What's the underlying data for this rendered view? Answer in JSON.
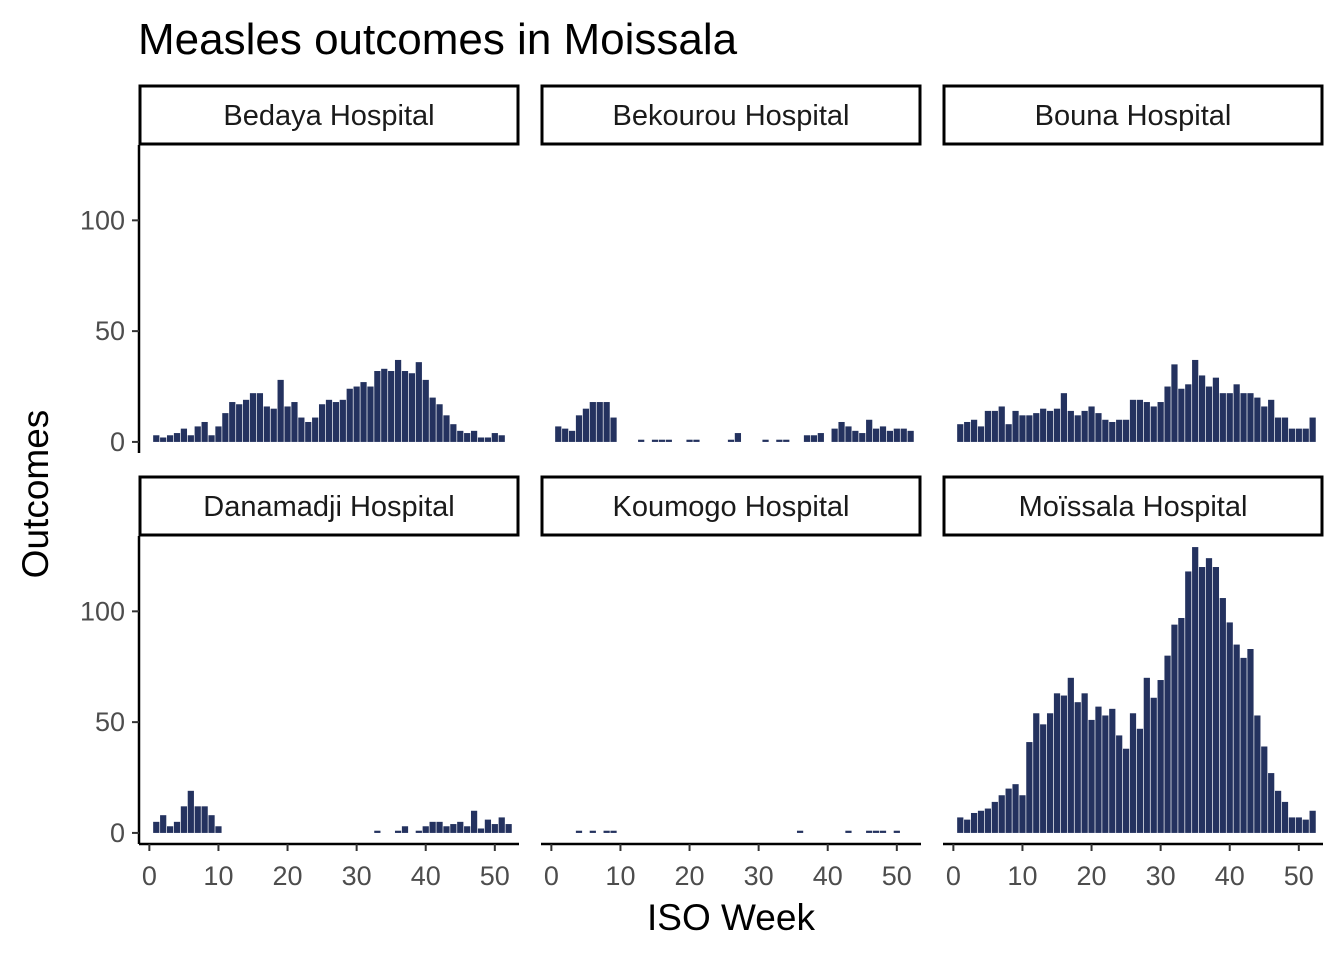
{
  "chart_data": {
    "type": "bar",
    "title": "Measles outcomes in Moissala",
    "xlabel": "ISO Week",
    "ylabel": "Outcomes",
    "xlim": [
      -1.5,
      53.5
    ],
    "ylim": [
      -5,
      134
    ],
    "x_ticks": [
      0,
      10,
      20,
      30,
      40,
      50
    ],
    "y_ticks": [
      0,
      50,
      100
    ],
    "bar_color": "#24325f",
    "grid": false,
    "weeks": [
      1,
      2,
      3,
      4,
      5,
      6,
      7,
      8,
      9,
      10,
      11,
      12,
      13,
      14,
      15,
      16,
      17,
      18,
      19,
      20,
      21,
      22,
      23,
      24,
      25,
      26,
      27,
      28,
      29,
      30,
      31,
      32,
      33,
      34,
      35,
      36,
      37,
      38,
      39,
      40,
      41,
      42,
      43,
      44,
      45,
      46,
      47,
      48,
      49,
      50,
      51,
      52
    ],
    "panels": [
      {
        "name": "Bedaya Hospital",
        "values": [
          3,
          2,
          3,
          4,
          6,
          3,
          7,
          9,
          3,
          7,
          13,
          18,
          17,
          19,
          22,
          22,
          16,
          15,
          28,
          16,
          18,
          11,
          9,
          11,
          17,
          19,
          18,
          19,
          24,
          25,
          27,
          25,
          32,
          33,
          32,
          37,
          32,
          31,
          36,
          28,
          20,
          17,
          12,
          8,
          5,
          4,
          5,
          2,
          2,
          4,
          3,
          0
        ]
      },
      {
        "name": "Bekourou Hospital",
        "values": [
          7,
          6,
          5,
          12,
          15,
          18,
          18,
          18,
          11,
          0,
          0,
          0,
          1,
          0,
          1,
          1,
          1,
          0,
          0,
          1,
          1,
          0,
          0,
          0,
          0,
          1,
          4,
          0,
          0,
          0,
          1,
          0,
          1,
          1,
          0,
          0,
          3,
          3,
          4,
          0,
          6,
          9,
          7,
          5,
          4,
          10,
          6,
          7,
          5,
          6,
          6,
          5
        ]
      },
      {
        "name": "Bouna Hospital",
        "values": [
          8,
          9,
          10,
          7,
          14,
          14,
          16,
          8,
          14,
          12,
          12,
          13,
          15,
          14,
          15,
          22,
          14,
          12,
          14,
          16,
          13,
          10,
          9,
          10,
          10,
          19,
          19,
          18,
          16,
          18,
          25,
          35,
          24,
          26,
          37,
          30,
          25,
          29,
          22,
          22,
          26,
          22,
          22,
          20,
          16,
          19,
          11,
          11,
          6,
          6,
          6,
          11
        ]
      },
      {
        "name": "Danamadji Hospital",
        "values": [
          5,
          8,
          3,
          5,
          12,
          19,
          12,
          12,
          8,
          3,
          0,
          0,
          0,
          0,
          0,
          0,
          0,
          0,
          0,
          0,
          0,
          0,
          0,
          0,
          0,
          0,
          0,
          0,
          0,
          0,
          0,
          0,
          1,
          0,
          0,
          1,
          3,
          0,
          1,
          3,
          5,
          5,
          3,
          4,
          5,
          3,
          10,
          2,
          6,
          4,
          7,
          4
        ]
      },
      {
        "name": "Koumogo Hospital",
        "values": [
          0,
          0,
          0,
          1,
          0,
          1,
          0,
          1,
          1,
          0,
          0,
          0,
          0,
          0,
          0,
          0,
          0,
          0,
          0,
          0,
          0,
          0,
          0,
          0,
          0,
          0,
          0,
          0,
          0,
          0,
          0,
          0,
          0,
          0,
          0,
          1,
          0,
          0,
          0,
          0,
          0,
          0,
          1,
          0,
          0,
          1,
          1,
          1,
          0,
          1,
          0,
          0
        ]
      },
      {
        "name": "Moïssala Hospital",
        "values": [
          7,
          6,
          9,
          10,
          11,
          14,
          17,
          20,
          22,
          17,
          41,
          54,
          49,
          54,
          63,
          62,
          70,
          59,
          63,
          51,
          57,
          53,
          56,
          44,
          38,
          54,
          47,
          70,
          61,
          69,
          80,
          94,
          97,
          118,
          129,
          120,
          124,
          120,
          106,
          95,
          85,
          79,
          83,
          53,
          39,
          27,
          19,
          14,
          7,
          7,
          6,
          10
        ]
      }
    ]
  }
}
